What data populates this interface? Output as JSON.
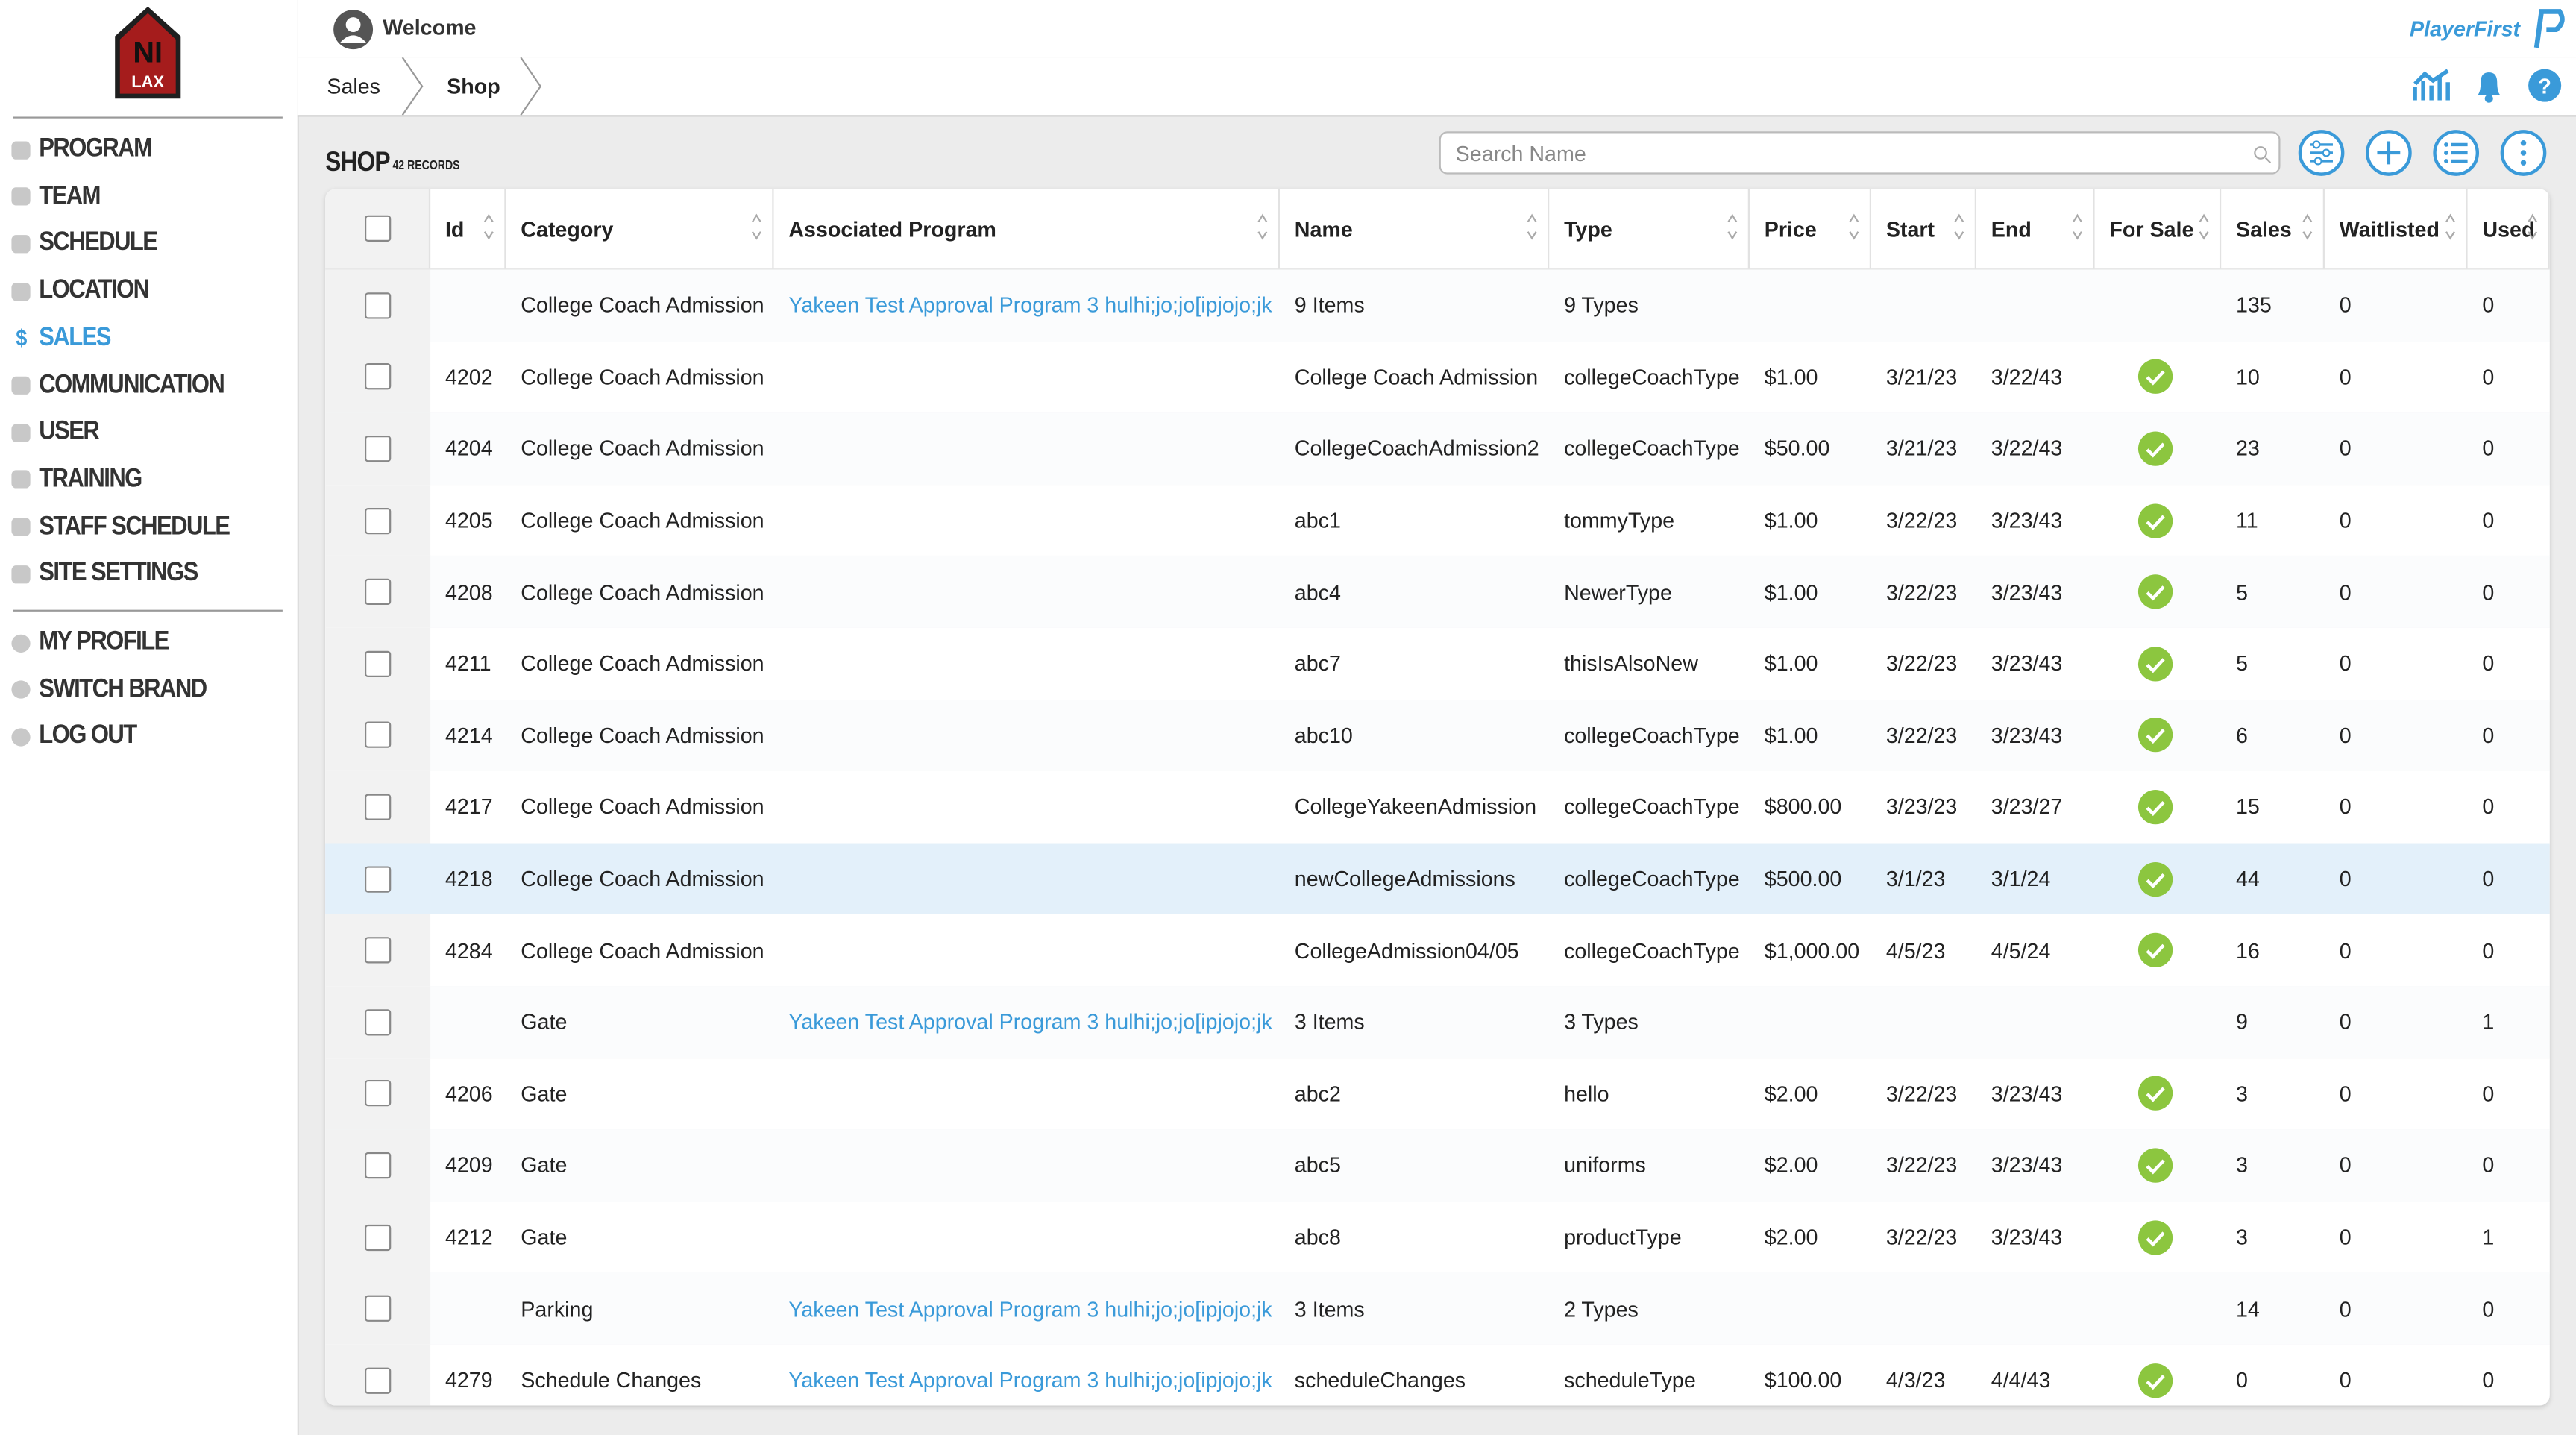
{
  "logo": {
    "top": "NI",
    "bottom": "LAX"
  },
  "sidebar": {
    "active": 4,
    "menu": [
      "PROGRAM",
      "TEAM",
      "SCHEDULE",
      "LOCATION",
      "SALES",
      "COMMUNICATION",
      "USER",
      "TRAINING",
      "STAFF SCHEDULE",
      "SITE SETTINGS"
    ],
    "account": [
      "MY PROFILE",
      "SWITCH BRAND",
      "LOG OUT"
    ]
  },
  "header": {
    "welcome": "Welcome",
    "brand": "PlayerFirst"
  },
  "breadcrumb": [
    "Sales",
    "Shop"
  ],
  "page": {
    "title": "SHOP",
    "record_count": "42 RECORDS",
    "search_placeholder": "Search Name"
  },
  "table": {
    "columns": [
      "Id",
      "Category",
      "Associated Program",
      "Name",
      "Type",
      "Price",
      "Start",
      "End",
      "For Sale",
      "Sales",
      "Waitlisted",
      "Used"
    ],
    "rows": [
      {
        "cells": [
          null,
          "College Coach Admission",
          "Yakeen Test Approval Program 3 hulhi;jo;jo[ipjojo;jk",
          "9 Items",
          "9 Types",
          null,
          null,
          null,
          null,
          "135",
          "0",
          "0"
        ],
        "for_sale": false,
        "highlighted": false
      },
      {
        "cells": [
          "4202",
          "College Coach Admission",
          null,
          "College Coach Admission",
          "collegeCoachType",
          "$1.00",
          "3/21/23",
          "3/22/43",
          null,
          "10",
          "0",
          "0"
        ],
        "for_sale": true,
        "highlighted": false
      },
      {
        "cells": [
          "4204",
          "College Coach Admission",
          null,
          "CollegeCoachAdmission2",
          "collegeCoachType",
          "$50.00",
          "3/21/23",
          "3/22/43",
          null,
          "23",
          "0",
          "0"
        ],
        "for_sale": true,
        "highlighted": false
      },
      {
        "cells": [
          "4205",
          "College Coach Admission",
          null,
          "abc1",
          "tommyType",
          "$1.00",
          "3/22/23",
          "3/23/43",
          null,
          "11",
          "0",
          "0"
        ],
        "for_sale": true,
        "highlighted": false
      },
      {
        "cells": [
          "4208",
          "College Coach Admission",
          null,
          "abc4",
          "NewerType",
          "$1.00",
          "3/22/23",
          "3/23/43",
          null,
          "5",
          "0",
          "0"
        ],
        "for_sale": true,
        "highlighted": false
      },
      {
        "cells": [
          "4211",
          "College Coach Admission",
          null,
          "abc7",
          "thisIsAlsoNew",
          "$1.00",
          "3/22/23",
          "3/23/43",
          null,
          "5",
          "0",
          "0"
        ],
        "for_sale": true,
        "highlighted": false
      },
      {
        "cells": [
          "4214",
          "College Coach Admission",
          null,
          "abc10",
          "collegeCoachType",
          "$1.00",
          "3/22/23",
          "3/23/43",
          null,
          "6",
          "0",
          "0"
        ],
        "for_sale": true,
        "highlighted": false
      },
      {
        "cells": [
          "4217",
          "College Coach Admission",
          null,
          "CollegeYakeenAdmission",
          "collegeCoachType",
          "$800.00",
          "3/23/23",
          "3/23/27",
          null,
          "15",
          "0",
          "0"
        ],
        "for_sale": true,
        "highlighted": false
      },
      {
        "cells": [
          "4218",
          "College Coach Admission",
          null,
          "newCollegeAdmissions",
          "collegeCoachType",
          "$500.00",
          "3/1/23",
          "3/1/24",
          null,
          "44",
          "0",
          "0"
        ],
        "for_sale": true,
        "highlighted": true
      },
      {
        "cells": [
          "4284",
          "College Coach Admission",
          null,
          "CollegeAdmission04/05",
          "collegeCoachType",
          "$1,000.00",
          "4/5/23",
          "4/5/24",
          null,
          "16",
          "0",
          "0"
        ],
        "for_sale": true,
        "highlighted": false
      },
      {
        "cells": [
          null,
          "Gate",
          "Yakeen Test Approval Program 3 hulhi;jo;jo[ipjojo;jk",
          "3 Items",
          "3 Types",
          null,
          null,
          null,
          null,
          "9",
          "0",
          "1"
        ],
        "for_sale": false,
        "highlighted": false
      },
      {
        "cells": [
          "4206",
          "Gate",
          null,
          "abc2",
          "hello",
          "$2.00",
          "3/22/23",
          "3/23/43",
          null,
          "3",
          "0",
          "0"
        ],
        "for_sale": true,
        "highlighted": false
      },
      {
        "cells": [
          "4209",
          "Gate",
          null,
          "abc5",
          "uniforms",
          "$2.00",
          "3/22/23",
          "3/23/43",
          null,
          "3",
          "0",
          "0"
        ],
        "for_sale": true,
        "highlighted": false
      },
      {
        "cells": [
          "4212",
          "Gate",
          null,
          "abc8",
          "productType",
          "$2.00",
          "3/22/23",
          "3/23/43",
          null,
          "3",
          "0",
          "1"
        ],
        "for_sale": true,
        "highlighted": false
      },
      {
        "cells": [
          null,
          "Parking",
          "Yakeen Test Approval Program 3 hulhi;jo;jo[ipjojo;jk",
          "3 Items",
          "2 Types",
          null,
          null,
          null,
          null,
          "14",
          "0",
          "0"
        ],
        "for_sale": false,
        "highlighted": false
      },
      {
        "cells": [
          "4279",
          "Schedule Changes",
          "Yakeen Test Approval Program 3 hulhi;jo;jo[ipjojo;jk",
          "scheduleChanges",
          "scheduleType",
          "$100.00",
          "4/3/23",
          "4/4/43",
          null,
          "0",
          "0",
          "0"
        ],
        "for_sale": true,
        "highlighted": false
      }
    ]
  }
}
